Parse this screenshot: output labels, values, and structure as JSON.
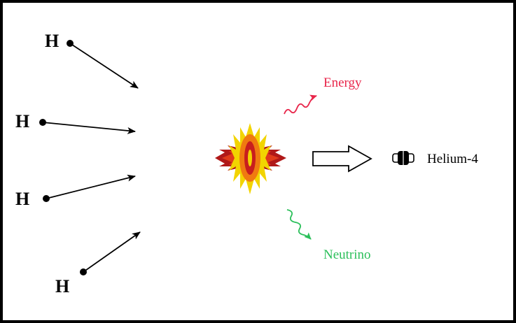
{
  "diagram": {
    "hydrogen_labels": [
      "H",
      "H",
      "H",
      "H"
    ],
    "energy_label": "Energy",
    "neutrino_label": "Neutrino",
    "product_label": "Helium-4",
    "colors": {
      "border": "#000000",
      "arrow": "#000000",
      "energy": "#e8254a",
      "neutrino": "#2bbf5a",
      "burst_outer": "#f2d400",
      "burst_mid": "#f07a10",
      "burst_inner": "#c81e1e",
      "product": "#000000"
    },
    "icons": {
      "energy_wave": "wavy-arrow-icon",
      "neutrino_wave": "wavy-arrow-icon",
      "fusion": "starburst-icon",
      "reaction_arrow": "hollow-arrow-icon",
      "nucleus": "helium-nucleus-icon"
    }
  }
}
